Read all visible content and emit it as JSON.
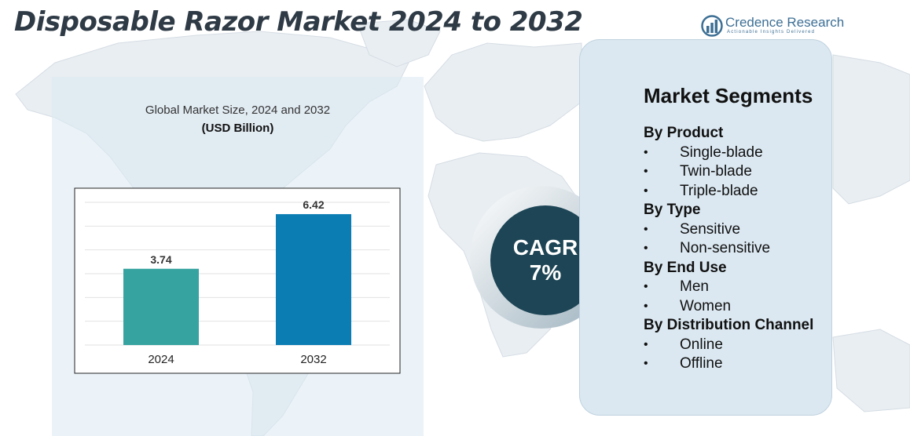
{
  "header": {
    "title": "Disposable Razor Market 2024 to 2032"
  },
  "brand": {
    "name": "Credence Research",
    "tagline": "Actionable Insights Delivered"
  },
  "chart_data": {
    "type": "bar",
    "title": "Global Market Size, 2024 and 2032",
    "unit_label": "(USD Billion)",
    "categories": [
      "2024",
      "2032"
    ],
    "values": [
      3.74,
      6.42
    ],
    "value_labels": [
      "3.74",
      "6.42"
    ],
    "bar_colors": [
      "#36a3a0",
      "#0b7db3"
    ],
    "ylim": [
      0,
      7
    ],
    "grid": true,
    "xlabel": "",
    "ylabel": ""
  },
  "cagr": {
    "label": "CAGR",
    "value": "7%"
  },
  "segments": {
    "heading": "Market Segments",
    "groups": [
      {
        "title": "By Product",
        "items": [
          "Single-blade",
          "Twin-blade",
          "Triple-blade"
        ]
      },
      {
        "title": "By Type",
        "items": [
          "Sensitive",
          "Non-sensitive"
        ]
      },
      {
        "title": "By End Use",
        "items": [
          "Men",
          "Women"
        ]
      },
      {
        "title": "By Distribution Channel",
        "items": [
          "Online",
          "Offline"
        ]
      }
    ]
  },
  "colors": {
    "title_text": "#2e3a45",
    "brand_blue": "#3d6f95",
    "cagr_circle": "#1d4555",
    "card_background": "#dbe8f1"
  }
}
